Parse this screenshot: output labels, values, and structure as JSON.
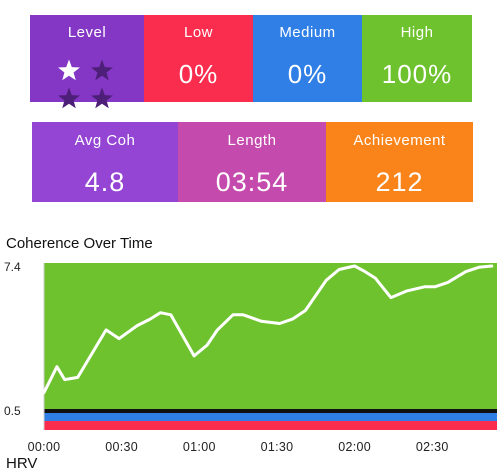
{
  "summary": {
    "level": {
      "label": "Level",
      "stars_filled": 1,
      "stars_total": 4,
      "color": "#8437C4"
    },
    "low": {
      "label": "Low",
      "value": "0%",
      "color": "#FB2D4E"
    },
    "medium": {
      "label": "Medium",
      "value": "0%",
      "color": "#2F7FE6"
    },
    "high": {
      "label": "High",
      "value": "100%",
      "color": "#6DC22E"
    },
    "avg_coh": {
      "label": "Avg Coh",
      "value": "4.8",
      "color": "#9545D3"
    },
    "length": {
      "label": "Length",
      "value": "03:54",
      "color": "#C44BAD"
    },
    "achievement": {
      "label": "Achievement",
      "value": "212",
      "color": "#FA8419"
    }
  },
  "coherence_section": {
    "title": "Coherence Over Time"
  },
  "hrv_section": {
    "title": "HRV"
  },
  "chart_data": {
    "type": "area",
    "title": "Coherence Over Time",
    "xlabel": "",
    "ylabel": "",
    "x_tick_labels": [
      "00:00",
      "00:30",
      "01:00",
      "01:30",
      "02:00",
      "02:30"
    ],
    "x_tick_seconds": [
      0,
      30,
      60,
      90,
      120,
      150
    ],
    "y_tick_labels": [
      "7.4",
      "0.5"
    ],
    "ylim": [
      0.5,
      7.4
    ],
    "xlim": [
      0,
      175
    ],
    "series": [
      {
        "values_x_seconds": [
          0,
          5,
          8,
          13,
          24,
          29,
          36,
          41,
          45,
          49,
          58,
          63,
          67,
          73,
          77,
          84,
          91,
          96,
          101,
          109,
          114,
          120,
          124,
          128,
          134,
          140,
          147,
          151,
          156,
          163,
          168,
          173
        ],
        "values_y": [
          1.4,
          2.6,
          2.0,
          2.1,
          4.3,
          3.9,
          4.5,
          4.8,
          5.1,
          5.0,
          3.1,
          3.6,
          4.3,
          5.0,
          5.0,
          4.7,
          4.6,
          4.8,
          5.2,
          6.6,
          7.1,
          7.3,
          7.0,
          6.7,
          5.8,
          6.1,
          6.3,
          6.3,
          6.5,
          7.0,
          7.2,
          7.5
        ]
      }
    ],
    "bands": [
      {
        "name": "high",
        "color": "#6DC22E"
      },
      {
        "name": "medium",
        "color": "#2F7FE6"
      },
      {
        "name": "low",
        "color": "#FB2D4E"
      }
    ]
  }
}
